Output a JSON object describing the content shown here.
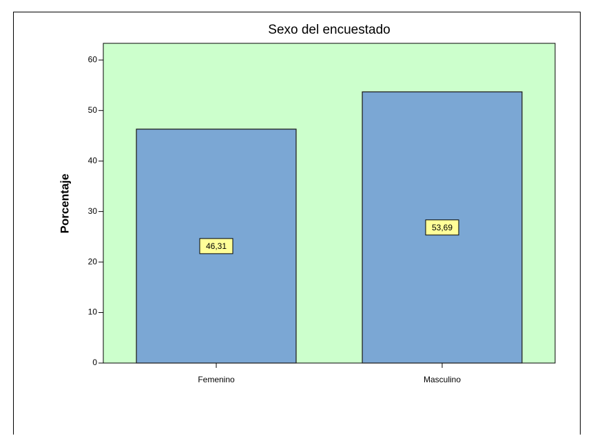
{
  "chart_data": {
    "type": "bar",
    "title": "Sexo del encuestado",
    "y_label": "Porcentaje",
    "categories": [
      "Femenino",
      "Masculino"
    ],
    "values": [
      46.31,
      53.69
    ],
    "value_labels": [
      "46,31",
      "53,69"
    ],
    "color": "#7ba7d4",
    "background": "#ccffcc",
    "ylim": [
      0,
      63.3
    ],
    "yticks": [
      0,
      10,
      20,
      30,
      40,
      50,
      60
    ],
    "grid": false
  }
}
